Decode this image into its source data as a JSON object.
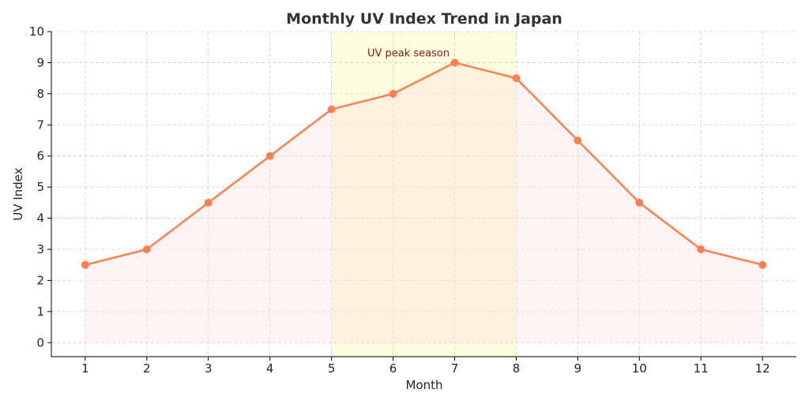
{
  "chart_data": {
    "type": "line",
    "title": "Monthly UV Index Trend in Japan",
    "xlabel": "Month",
    "ylabel": "UV Index",
    "x": [
      1,
      2,
      3,
      4,
      5,
      6,
      7,
      8,
      9,
      10,
      11,
      12
    ],
    "values": [
      2.5,
      3,
      4.5,
      6,
      7.5,
      8,
      9,
      8.5,
      6.5,
      4.5,
      3,
      2.5
    ],
    "xlim": [
      0.45,
      12.55
    ],
    "ylim": [
      -0.45,
      10
    ],
    "yticks": [
      0,
      1,
      2,
      3,
      4,
      5,
      6,
      7,
      8,
      9,
      10
    ],
    "grid": true,
    "line_color": "#ff7f50",
    "fill_color": "#ffe4e1",
    "highlight": {
      "from": 5,
      "to": 8,
      "color": "#fffde0"
    },
    "annotation": {
      "text": "UV peak season",
      "x": 6.25,
      "y": 9.2,
      "color": "#8b1a1a"
    }
  }
}
